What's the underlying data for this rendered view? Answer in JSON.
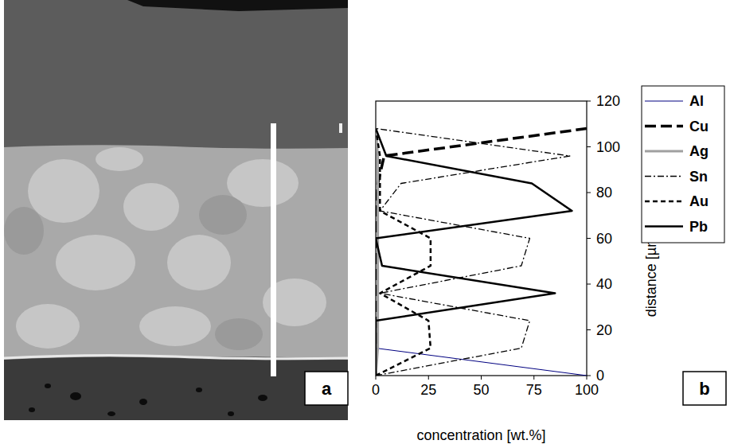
{
  "chart_data": {
    "type": "line",
    "orientation": "horizontal",
    "xlabel": "distance [µm]",
    "ylabel": "concentration [wt.%]",
    "annotations": [
      "a",
      "b"
    ],
    "x": [
      0,
      12,
      24,
      36,
      48,
      60,
      72,
      84,
      96,
      108
    ],
    "xlim": [
      0,
      120
    ],
    "xticks": [
      0,
      20,
      40,
      60,
      80,
      100,
      120
    ],
    "ylim": [
      0,
      100
    ],
    "yticks": [
      0,
      25,
      50,
      75,
      100
    ],
    "grid": false,
    "legend": "right",
    "series": [
      {
        "name": "Al",
        "color": "#000080",
        "line_style": "solid",
        "values": [
          100,
          0,
          null,
          null,
          null,
          null,
          null,
          null,
          null,
          null
        ]
      },
      {
        "name": "Cu",
        "color": "#000000",
        "line_style": "long-dash",
        "values": [
          0,
          0,
          0,
          0,
          0,
          0,
          0,
          1,
          4,
          100
        ]
      },
      {
        "name": "Ag",
        "color": "#a0a0a0",
        "line_style": "solid",
        "values": [
          0,
          1,
          1,
          1,
          1,
          1,
          1,
          1,
          1,
          0
        ]
      },
      {
        "name": "Sn",
        "color": "#000000",
        "line_style": "dash-dot",
        "values": [
          0,
          69,
          73,
          2,
          69,
          73,
          2,
          12,
          92,
          0
        ]
      },
      {
        "name": "Au",
        "color": "#000000",
        "line_style": "dash",
        "values": [
          0,
          26,
          25,
          2,
          26,
          26,
          2,
          2,
          2,
          0
        ]
      },
      {
        "name": "Pb",
        "color": "#000000",
        "line_style": "solid",
        "values": [
          0,
          0,
          0,
          85,
          3,
          0,
          93,
          74,
          5,
          0
        ]
      }
    ]
  }
}
